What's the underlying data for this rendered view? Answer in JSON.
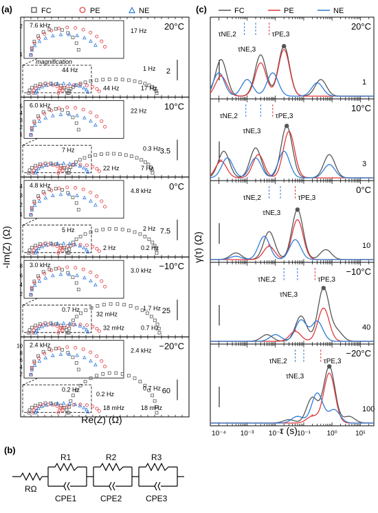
{
  "panel_labels": {
    "a": "(a)",
    "b": "(b)",
    "c": "(c)"
  },
  "legend": {
    "items": [
      {
        "symbol": "square",
        "label": "FC",
        "color": "#444444"
      },
      {
        "symbol": "circle",
        "label": "PE",
        "color": "#e0363a"
      },
      {
        "symbol": "triangle",
        "label": "NE",
        "color": "#2e7bd6"
      }
    ]
  },
  "colors": {
    "FC": "#555555",
    "PE": "#e0363a",
    "NE": "#2e7bd6",
    "axis": "#000000"
  },
  "nyquist": {
    "xlabel": "Re(Z) (Ω)",
    "ylabel": "-Im(Z) (Ω)",
    "magnification_label": "magnification",
    "panels": [
      {
        "temp": "20°C",
        "scale": "2",
        "inset_ticks": [
          "2",
          "1"
        ],
        "labels": [
          "7.6 kHz",
          "17 Hz",
          "44 Hz",
          "1 Hz",
          "44 Hz",
          "17 Hz"
        ]
      },
      {
        "temp": "10°C",
        "scale": "3.5",
        "inset_ticks": [
          "5",
          "4",
          "3",
          "2",
          "1"
        ],
        "labels": [
          "6.0 kHz",
          "22 Hz",
          "7 Hz",
          "0.3 Hz",
          "22 Hz",
          "7 Hz"
        ]
      },
      {
        "temp": "0°C",
        "scale": "7.5",
        "inset_ticks": [
          "4",
          "3",
          "2",
          "1"
        ],
        "labels": [
          "4.8 kHz",
          "4.8 kHz",
          "5 Hz",
          "2 Hz",
          "2 Hz",
          "0.2 Hz"
        ]
      },
      {
        "temp": "−10°C",
        "scale": "25",
        "inset_ticks": [
          "8",
          "6",
          "4",
          "2"
        ],
        "labels": [
          "3.0 kHz",
          "3.0 kHz",
          "0.7 Hz",
          "1.7 Hz",
          "32 mHz",
          "0.7 Hz",
          "32 mHz"
        ]
      },
      {
        "temp": "−20°C",
        "scale": "60",
        "inset_ticks": [
          "10",
          "8",
          "6",
          "4",
          "2"
        ],
        "labels": [
          "2.4 kHz",
          "2.4 kHz",
          "0.2 Hz",
          "0.7 Hz",
          "18 mHz",
          "18 mHz",
          "0.2 Hz"
        ]
      }
    ]
  },
  "circuit": {
    "r0": "RΩ",
    "elements": [
      {
        "r": "R1",
        "cpe": "CPE1"
      },
      {
        "r": "R2",
        "cpe": "CPE2"
      },
      {
        "r": "R3",
        "cpe": "CPE3"
      }
    ]
  },
  "drt": {
    "xlabel": "τ (s)",
    "ylabel": "γ(τ) (Ω)",
    "tau_labels": [
      "τNE,2",
      "τNE,3",
      "τPE,3"
    ],
    "panels": [
      {
        "temp": "20°C",
        "scale": "1"
      },
      {
        "temp": "10°C",
        "scale": "3"
      },
      {
        "temp": "0°C",
        "scale": "10"
      },
      {
        "temp": "−10°C",
        "scale": "40"
      },
      {
        "temp": "−20°C",
        "scale": "100"
      }
    ]
  },
  "chart_data": [
    {
      "type": "scatter",
      "title": "",
      "xlabel": "Re(Z) (Ω)",
      "ylabel": "-Im(Z) (Ω)",
      "series": [
        {
          "name": "FC",
          "values": []
        },
        {
          "name": "PE",
          "values": []
        },
        {
          "name": "NE",
          "values": []
        }
      ],
      "panels": [
        "20°C",
        "10°C",
        "0°C",
        "−10°C",
        "−20°C"
      ]
    },
    {
      "type": "line",
      "title": "",
      "xlabel": "τ (s)",
      "ylabel": "γ(τ) (Ω)",
      "x_scale": "log",
      "xlim": [
        5e-05,
        30
      ],
      "x_ticks": [
        "10⁻⁴",
        "10⁻³",
        "10⁻²",
        "10⁻¹",
        "10⁰",
        "10¹"
      ],
      "series": [
        {
          "name": "FC"
        },
        {
          "name": "PE"
        },
        {
          "name": "NE"
        }
      ],
      "panels": [
        {
          "temp": "20°C",
          "peaks_FC": [
            [
              0.00012,
              0.55
            ],
            [
              0.003,
              0.62
            ],
            [
              0.02,
              0.75
            ],
            [
              0.4,
              0.25
            ]
          ],
          "peaks_PE": [
            [
              0.00012,
              0.3
            ],
            [
              0.003,
              0.5
            ],
            [
              0.02,
              0.7
            ]
          ],
          "peaks_NE": [
            [
              0.0001,
              0.35
            ],
            [
              0.001,
              0.25
            ],
            [
              0.008,
              0.35
            ],
            [
              0.3,
              0.2
            ]
          ]
        },
        {
          "temp": "10°C",
          "peaks_FC": [
            [
              0.00015,
              0.4
            ],
            [
              0.002,
              0.45
            ],
            [
              0.025,
              0.78
            ],
            [
              0.8,
              0.35
            ]
          ],
          "peaks_PE": [
            [
              0.00012,
              0.25
            ],
            [
              0.0025,
              0.35
            ],
            [
              0.03,
              0.7
            ]
          ],
          "peaks_NE": [
            [
              0.0002,
              0.3
            ],
            [
              0.002,
              0.3
            ],
            [
              0.02,
              0.4
            ],
            [
              0.8,
              0.2
            ]
          ]
        },
        {
          "temp": "0°C",
          "peaks_FC": [
            [
              0.0004,
              0.1
            ],
            [
              0.006,
              0.42
            ],
            [
              0.06,
              0.75
            ],
            [
              0.6,
              0.15
            ]
          ],
          "peaks_PE": [
            [
              0.006,
              0.2
            ],
            [
              0.06,
              0.6
            ]
          ],
          "peaks_NE": [
            [
              0.0004,
              0.05
            ],
            [
              0.004,
              0.35
            ],
            [
              0.05,
              0.3
            ]
          ]
        },
        {
          "temp": "−10°C",
          "peaks_FC": [
            [
              0.005,
              0.1
            ],
            [
              0.08,
              0.38
            ],
            [
              0.5,
              0.8
            ],
            [
              1.5,
              0.15
            ]
          ],
          "peaks_PE": [
            [
              0.05,
              0.15
            ],
            [
              0.5,
              0.5
            ]
          ],
          "peaks_NE": [
            [
              0.01,
              0.1
            ],
            [
              0.08,
              0.32
            ],
            [
              0.3,
              0.3
            ]
          ]
        },
        {
          "temp": "−20°C",
          "peaks_FC": [
            [
              0.03,
              0.05
            ],
            [
              0.2,
              0.38
            ],
            [
              0.8,
              0.85
            ],
            [
              4,
              0.1
            ]
          ],
          "peaks_PE": [
            [
              0.2,
              0.1
            ],
            [
              0.8,
              0.75
            ]
          ],
          "peaks_NE": [
            [
              0.06,
              0.1
            ],
            [
              0.3,
              0.45
            ],
            [
              1.2,
              0.2
            ]
          ]
        }
      ]
    }
  ]
}
